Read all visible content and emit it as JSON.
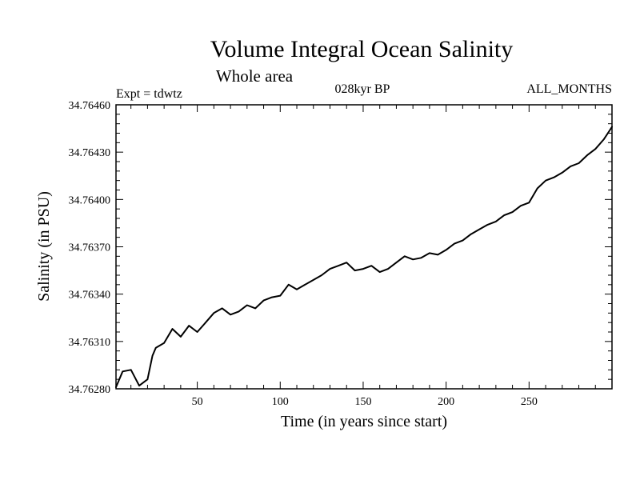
{
  "chart_data": {
    "type": "line",
    "title": "Volume Integral Ocean Salinity",
    "subtitle": "Whole area",
    "experiment": "Expt = tdwtz",
    "period": "028kyr BP",
    "months": "ALL_MONTHS",
    "xlabel": "Time (in years since start)",
    "ylabel": "Salinity (in PSU)",
    "xlim": [
      1,
      300
    ],
    "ylim": [
      34.7628,
      34.7646
    ],
    "xticks": [
      50,
      100,
      150,
      200,
      250
    ],
    "yticks": [
      "34.76280",
      "34.76310",
      "34.76340",
      "34.76370",
      "34.76400",
      "34.76430",
      "34.76460"
    ],
    "grid": false,
    "series": [
      {
        "name": "Salinity",
        "color": "#000000",
        "x": [
          1,
          5,
          10,
          15,
          20,
          23,
          25,
          30,
          35,
          40,
          45,
          50,
          55,
          60,
          65,
          70,
          75,
          80,
          85,
          90,
          95,
          100,
          105,
          110,
          115,
          120,
          125,
          130,
          135,
          140,
          145,
          150,
          155,
          160,
          165,
          170,
          175,
          180,
          185,
          190,
          195,
          200,
          205,
          210,
          215,
          220,
          225,
          230,
          235,
          240,
          245,
          250,
          255,
          260,
          265,
          270,
          275,
          280,
          285,
          290,
          295,
          300
        ],
        "y": [
          34.76281,
          34.76291,
          34.76292,
          34.76282,
          34.76286,
          34.76301,
          34.76306,
          34.76309,
          34.76318,
          34.76313,
          34.7632,
          34.76316,
          34.76322,
          34.76328,
          34.76331,
          34.76327,
          34.76329,
          34.76333,
          34.76331,
          34.76336,
          34.76338,
          34.76339,
          34.76346,
          34.76343,
          34.76346,
          34.76349,
          34.76352,
          34.76356,
          34.76358,
          34.7636,
          34.76355,
          34.76356,
          34.76358,
          34.76354,
          34.76356,
          34.7636,
          34.76364,
          34.76362,
          34.76363,
          34.76366,
          34.76365,
          34.76368,
          34.76372,
          34.76374,
          34.76378,
          34.76381,
          34.76384,
          34.76386,
          34.7639,
          34.76392,
          34.76396,
          34.76398,
          34.76407,
          34.76412,
          34.76414,
          34.76417,
          34.76421,
          34.76423,
          34.76428,
          34.76432,
          34.76438,
          34.76446
        ]
      }
    ]
  }
}
